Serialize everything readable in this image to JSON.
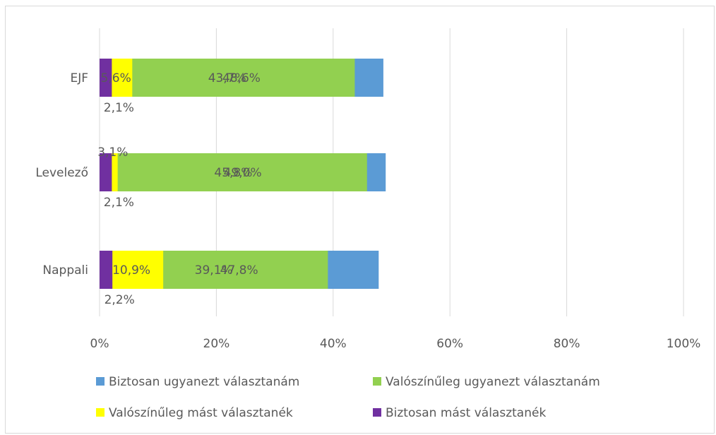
{
  "chart_data": {
    "type": "bar",
    "orientation": "horizontal",
    "stacked": "percent",
    "categories": [
      "EJF",
      "Levelező",
      "Nappali"
    ],
    "series": [
      {
        "name": "Biztosan ugyanezt választanám",
        "values": [
          48.6,
          49.0,
          47.8
        ],
        "labels": [
          "48,6%",
          "49,0%",
          "47,8%"
        ],
        "color": "#5b9bd5"
      },
      {
        "name": "Valószínűleg ugyanezt választanám",
        "values": [
          43.7,
          45.8,
          39.1
        ],
        "labels": [
          "43,7%",
          "45,8%",
          "39,1%"
        ],
        "color": "#92d050"
      },
      {
        "name": "Valószínűleg mást választanék",
        "values": [
          5.6,
          3.1,
          10.9
        ],
        "labels": [
          "5,6%",
          "3,1%",
          "10,9%"
        ],
        "color": "#ffff00"
      },
      {
        "name": "Biztosan mást választanék",
        "values": [
          2.1,
          2.1,
          2.2
        ],
        "labels": [
          "2,1%",
          "2,1%",
          "2,2%"
        ],
        "color": "#7030a0"
      }
    ],
    "xlim": [
      0,
      100
    ],
    "xticks": [
      "0%",
      "20%",
      "40%",
      "60%",
      "80%",
      "100%"
    ],
    "grid": true,
    "legend_position": "bottom"
  }
}
